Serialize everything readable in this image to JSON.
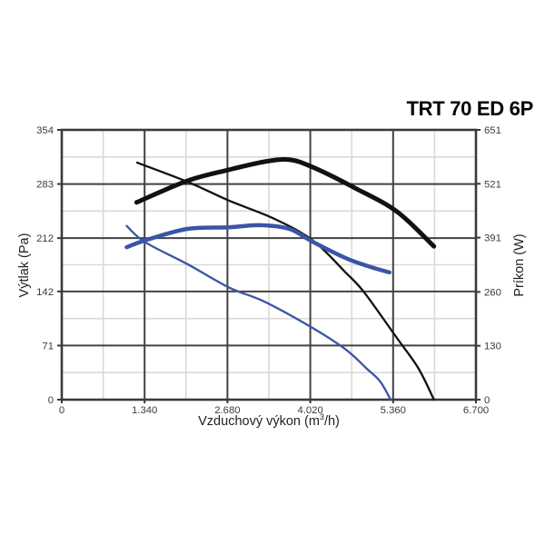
{
  "title": "TRT 70 ED 6P",
  "chart_data": {
    "type": "line",
    "title": "TRT 70 ED 6P",
    "xlabel_parts": {
      "pre": "Vzduchový výkon (m",
      "sup": "3",
      "post": "/h)"
    },
    "ylabel_left": "Výtlak (Pa)",
    "ylabel_right": "Príkon (W)",
    "x_range": [
      0,
      6700
    ],
    "y_left_range": [
      0,
      354
    ],
    "y_right_range": [
      0,
      651
    ],
    "x_ticks": {
      "values": [
        0,
        1340,
        2680,
        4020,
        5360,
        6700
      ],
      "labels": [
        "0",
        "1.340",
        "2.680",
        "4.020",
        "5.360",
        "6.700"
      ]
    },
    "y_left_ticks": {
      "values": [
        0,
        71,
        142,
        212,
        283,
        354
      ],
      "labels": [
        "0",
        "71",
        "142",
        "212",
        "283",
        "354"
      ]
    },
    "y_right_ticks": {
      "values": [
        0,
        130,
        260,
        391,
        521,
        651
      ],
      "labels": [
        "0",
        "130",
        "260",
        "391",
        "521",
        "651"
      ]
    },
    "grid": {
      "major": true,
      "minor": true
    },
    "legend": "none",
    "series": [
      {
        "name": "pressure-high-speed",
        "axis": "left",
        "unit": "Pa",
        "color": "#111111",
        "width": 2.3,
        "points": [
          [
            1220,
            311
          ],
          [
            2060,
            285
          ],
          [
            2710,
            261
          ],
          [
            3420,
            238
          ],
          [
            4060,
            209
          ],
          [
            4590,
            167
          ],
          [
            4890,
            141
          ],
          [
            5420,
            81
          ],
          [
            5770,
            41
          ],
          [
            6020,
            0
          ]
        ]
      },
      {
        "name": "power-high-speed",
        "axis": "right",
        "unit": "W",
        "color": "#111111",
        "width": 5,
        "points": [
          [
            1210,
            476
          ],
          [
            2030,
            528
          ],
          [
            2710,
            555
          ],
          [
            3270,
            574
          ],
          [
            3680,
            579
          ],
          [
            4060,
            561
          ],
          [
            4740,
            511
          ],
          [
            5420,
            454
          ],
          [
            6020,
            370
          ]
        ]
      },
      {
        "name": "power-low-speed",
        "axis": "right",
        "unit": "W",
        "color": "#3a55a6",
        "width": 4.5,
        "points": [
          [
            1050,
            368
          ],
          [
            1340,
            384
          ],
          [
            2030,
            412
          ],
          [
            2710,
            416
          ],
          [
            3200,
            421
          ],
          [
            3680,
            412
          ],
          [
            4060,
            381
          ],
          [
            4590,
            342
          ],
          [
            4960,
            322
          ],
          [
            5300,
            307
          ]
        ]
      },
      {
        "name": "pressure-low-speed",
        "axis": "left",
        "unit": "Pa",
        "color": "#3a55a6",
        "width": 2.3,
        "points": [
          [
            1050,
            228
          ],
          [
            1340,
            207
          ],
          [
            2030,
            178
          ],
          [
            2710,
            147
          ],
          [
            3270,
            129
          ],
          [
            4060,
            94
          ],
          [
            4590,
            66
          ],
          [
            4930,
            41
          ],
          [
            5150,
            24
          ],
          [
            5320,
            0
          ]
        ]
      }
    ],
    "colors": {
      "black_curve": "#111111",
      "blue_curve": "#3a55a6",
      "major_grid": "#424242",
      "minor_grid": "#d9d9d9",
      "axis_border": "#3a3a3a",
      "tick_text": "#3a3a3a",
      "background": "#ffffff"
    }
  }
}
